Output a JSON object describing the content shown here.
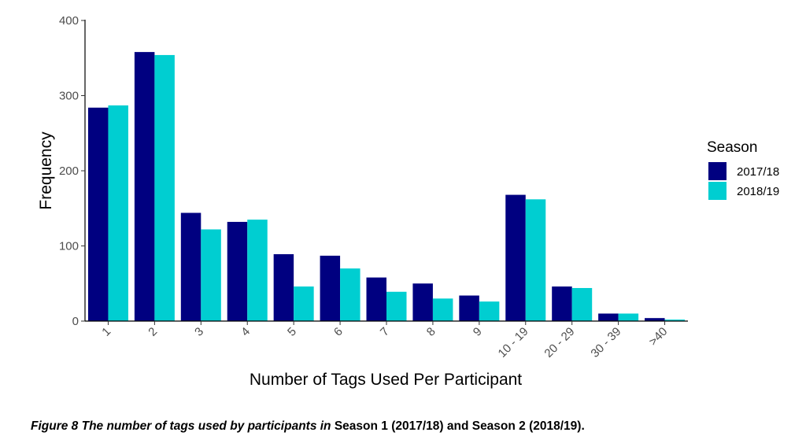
{
  "chart_data": {
    "type": "bar",
    "categories": [
      "1",
      "2",
      "3",
      "4",
      "5",
      "6",
      "7",
      "8",
      "9",
      "10 - 19",
      "20 - 29",
      "30 - 39",
      ">40"
    ],
    "series": [
      {
        "name": "2017/18",
        "color": "#000080",
        "values": [
          284,
          358,
          144,
          132,
          89,
          87,
          58,
          50,
          34,
          168,
          46,
          10,
          4
        ]
      },
      {
        "name": "2018/19",
        "color": "#00CED1",
        "values": [
          287,
          354,
          122,
          135,
          46,
          70,
          39,
          30,
          26,
          162,
          44,
          10,
          2
        ]
      }
    ],
    "xlabel": "Number of Tags Used Per Participant",
    "ylabel": "Frequency",
    "ylim": [
      0,
      400
    ],
    "yticks": [
      0,
      100,
      200,
      300,
      400
    ],
    "grid": false,
    "legend": {
      "title": "Season",
      "position": "right"
    }
  },
  "caption": {
    "italic_part": "Figure 8 The number of tags used by participants in",
    "regular_part": " Season 1 (2017/18) and Season 2 (2018/19)."
  }
}
